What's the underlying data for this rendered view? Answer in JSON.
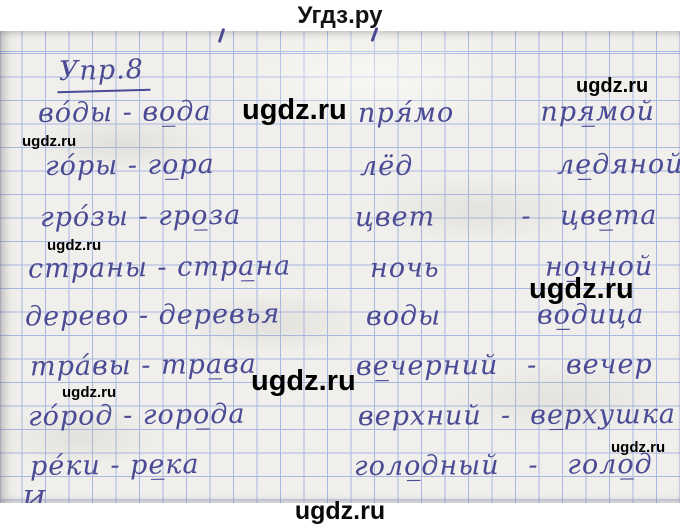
{
  "header": {
    "title": "Угдз.ру"
  },
  "watermark": {
    "text": "ugdz.ru"
  },
  "footer": {
    "text": "ugdz.ru"
  },
  "exercise": {
    "title": "Упр.8",
    "rows": [
      {
        "left": "во́ды - во̲да",
        "right": "пря́мо         пря̲мой"
      },
      {
        "left": "го́ры - го̲ра",
        "right": "лёд               ле̲дяной"
      },
      {
        "left": "гро́зы - гро̲за",
        "right": "цвет         -   цве̲та"
      },
      {
        "left": "страны - стра̲на",
        "right": "ночь           но̲чной"
      },
      {
        "left": "дерево - деревья",
        "right": "воды          во̲дица"
      },
      {
        "left": "тра́вы - тра̲ва",
        "right": "ве̲черний   -   вечер"
      },
      {
        "left": "го́род - горо̲да",
        "right": "верхний  -  ве̲рхушка"
      },
      {
        "left": "ре́ки - ре̲ка",
        "right": "голо̲дный   -   голо̲д"
      }
    ],
    "next_line_partial": "И"
  },
  "colors": {
    "ink": "#4a4a95",
    "grid_line": "#aab7e0",
    "paper": "#f0efeb",
    "watermark": "#000000"
  }
}
